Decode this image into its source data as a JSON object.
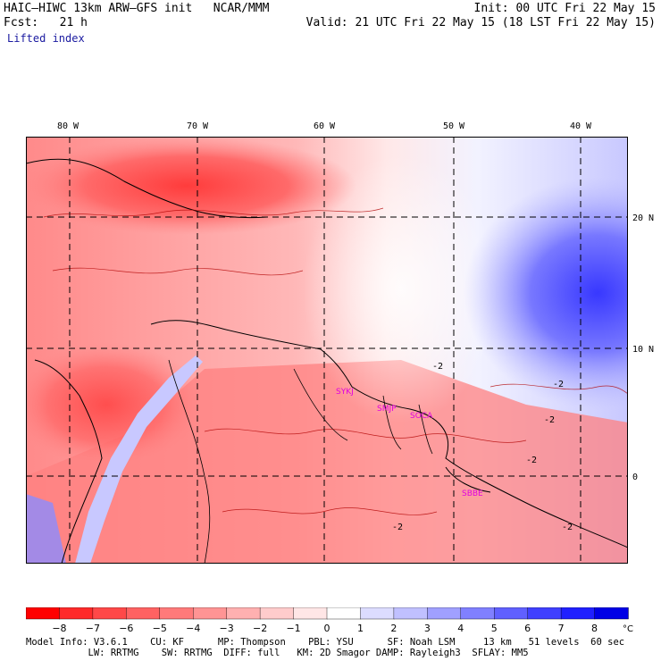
{
  "header": {
    "model_line": "HAIC–HIWC 13km ARW–GFS init   NCAR/MMM",
    "forecast_line": "Fcst:   21 h",
    "field_name": "Lifted index",
    "init_line": "Init: 00 UTC Fri 22 May 15",
    "valid_line": "Valid: 21 UTC Fri 22 May 15 (18 LST Fri 22 May 15)"
  },
  "map": {
    "lon_labels": [
      "80 W",
      "70 W",
      "60 W",
      "50 W",
      "40 W"
    ],
    "lat_labels": [
      "20 N",
      "10 N",
      "0"
    ],
    "stations": [
      "SYKJ",
      "SMJP",
      "SOCA",
      "SBBE"
    ],
    "contour_labels": [
      "-2",
      "-2",
      "-2",
      "-2",
      "-2",
      "-2"
    ]
  },
  "colorbar": {
    "ticks": [
      "−8",
      "−7",
      "−6",
      "−5",
      "−4",
      "−3",
      "−2",
      "−1",
      "0",
      "1",
      "2",
      "3",
      "4",
      "5",
      "6",
      "7",
      "8"
    ],
    "unit": "°C",
    "colors": [
      "#ff0000",
      "#ff2a2a",
      "#ff4848",
      "#ff6262",
      "#ff7a7a",
      "#ff9494",
      "#ffb0b0",
      "#ffcccc",
      "#ffe6e6",
      "#ffffff",
      "#dcdcff",
      "#c0c0ff",
      "#a0a0ff",
      "#8080ff",
      "#6060ff",
      "#4040ff",
      "#2020ff",
      "#0000e6"
    ]
  },
  "footer": {
    "line1": "Model Info: V3.6.1    CU: KF      MP: Thompson    PBL: YSU      SF: Noah LSM     13 km   51 levels  60 sec",
    "line2": "           LW: RRTMG    SW: RRTMG  DIFF: full   KM: 2D Smagor DAMP: Rayleigh3  SFLAY: MM5"
  }
}
